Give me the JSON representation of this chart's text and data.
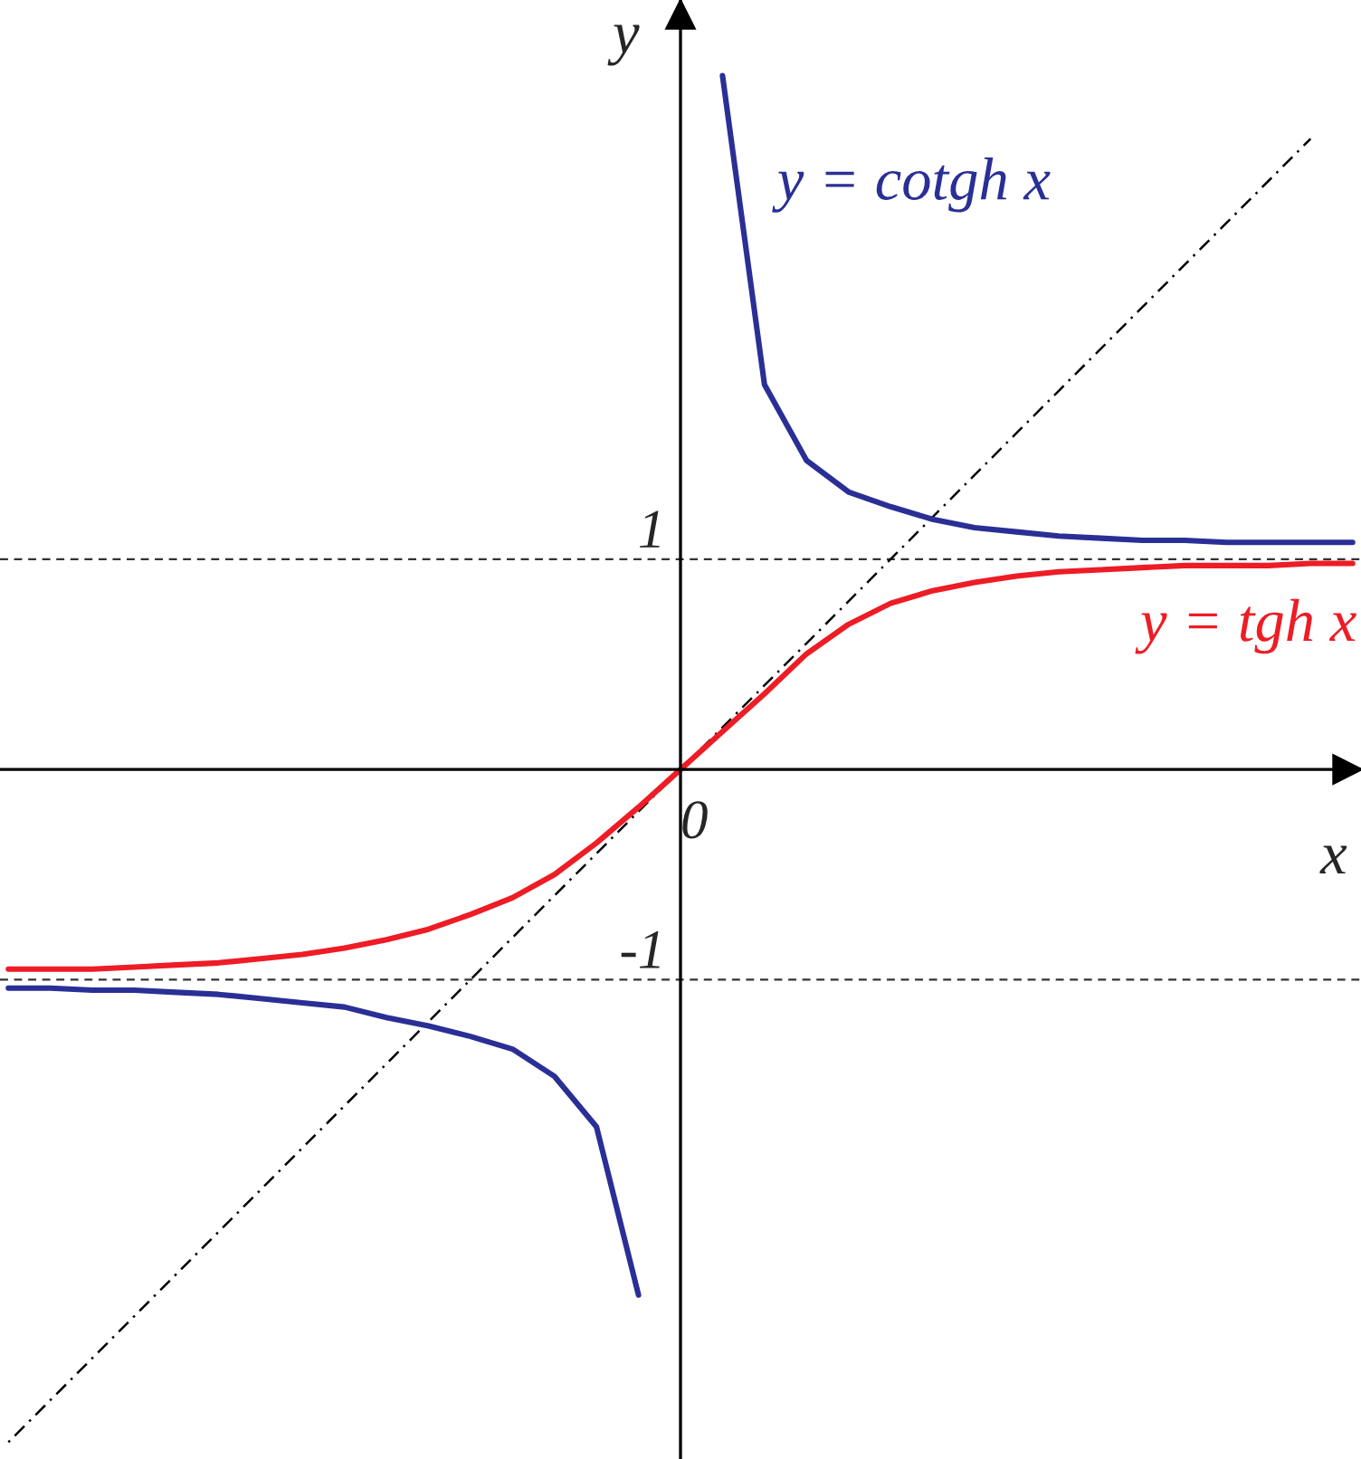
{
  "chart_data": {
    "type": "line",
    "xlabel": "x",
    "ylabel": "y",
    "ylim": [
      -3.28,
      3.66
    ],
    "categories": [
      null,
      null,
      null,
      null,
      null,
      null,
      null,
      null,
      null,
      null,
      null,
      null,
      null,
      null,
      null,
      null,
      "0",
      null,
      null,
      null,
      null,
      null,
      null,
      null,
      null,
      null,
      null,
      null,
      null,
      null,
      null,
      null,
      null
    ],
    "yticks": [
      {
        "value": 1,
        "label": "1"
      },
      {
        "value": -1,
        "label": "-1"
      }
    ],
    "grid": false,
    "marker": "none",
    "ref_lines": [
      {
        "axis": "y",
        "value": 1,
        "color": "#333333",
        "line_style": "dashed"
      },
      {
        "axis": "y",
        "value": -1,
        "color": "#333333",
        "line_style": "dashed"
      }
    ],
    "series": [
      {
        "type": "line",
        "color": "#000000",
        "line_style": "dotted",
        "values": [
          -3.2,
          -3.0,
          -2.8,
          -2.6,
          -2.4,
          -2.2,
          -2.0,
          -1.8,
          -1.6,
          -1.4,
          -1.2,
          -1.0,
          -0.8,
          -0.6,
          -0.4,
          -0.2,
          0,
          0.2,
          0.4,
          0.6,
          0.8,
          1.0,
          1.2,
          1.4,
          1.6,
          1.8,
          2.0,
          2.2,
          2.4,
          2.6,
          2.8,
          3.0,
          null
        ]
      },
      {
        "name": "y = cotgh x",
        "color": "#2a2f96",
        "line_style": "solid",
        "values": [
          -1.04,
          -1.04,
          -1.05,
          -1.05,
          -1.06,
          -1.07,
          -1.09,
          -1.11,
          -1.13,
          -1.18,
          -1.22,
          -1.27,
          -1.33,
          -1.46,
          -1.7,
          -2.5,
          null,
          3.3,
          1.83,
          1.47,
          1.32,
          1.25,
          1.19,
          1.15,
          1.13,
          1.11,
          1.1,
          1.09,
          1.09,
          1.08,
          1.08,
          1.08,
          1.08
        ]
      },
      {
        "name": "y = tgh x",
        "color": "#ee1c25",
        "line_style": "solid",
        "values": [
          -0.95,
          -0.95,
          -0.95,
          -0.94,
          -0.93,
          -0.92,
          -0.9,
          -0.88,
          -0.85,
          -0.81,
          -0.76,
          -0.69,
          -0.61,
          -0.5,
          -0.35,
          -0.18,
          0,
          0.18,
          0.36,
          0.55,
          0.69,
          0.79,
          0.85,
          0.89,
          0.92,
          0.94,
          0.95,
          0.96,
          0.97,
          0.97,
          0.97,
          0.98,
          0.98
        ]
      }
    ]
  }
}
